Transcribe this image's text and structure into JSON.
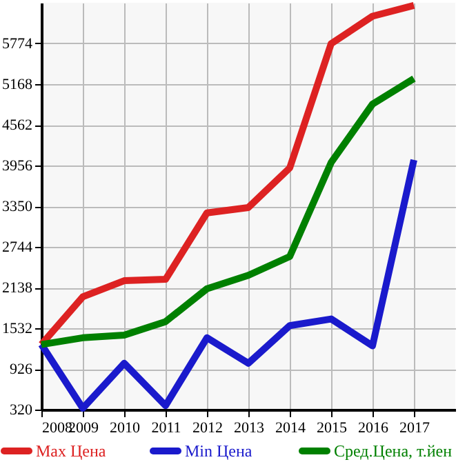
{
  "chart_data": {
    "type": "line",
    "x": [
      2008,
      2009,
      2010,
      2011,
      2012,
      2013,
      2014,
      2015,
      2016,
      2017
    ],
    "series": [
      {
        "name": "Max Цена",
        "color": "#dd2222",
        "values": [
          1290,
          2000,
          2240,
          2260,
          3250,
          3330,
          3920,
          5770,
          6180,
          6340
        ]
      },
      {
        "name": "Min Цена",
        "color": "#1a1acc",
        "values": [
          1290,
          340,
          1010,
          380,
          1390,
          1010,
          1570,
          1670,
          1270,
          4040
        ]
      },
      {
        "name": "Сред.Цена, т.йен",
        "color": "#008000",
        "values": [
          1290,
          1390,
          1430,
          1630,
          2120,
          2320,
          2600,
          4000,
          4870,
          5250
        ]
      }
    ],
    "xlim": [
      2008,
      2018
    ],
    "xticks": [
      2008,
      2009,
      2010,
      2011,
      2012,
      2013,
      2014,
      2015,
      2016,
      2017
    ],
    "ylim": [
      320,
      6380
    ],
    "yticks": [
      320,
      926,
      1532,
      2138,
      2744,
      3350,
      3956,
      4562,
      5168,
      5774
    ],
    "grid": true,
    "legend": "bottom",
    "marker": "none",
    "line_style": "solid"
  }
}
